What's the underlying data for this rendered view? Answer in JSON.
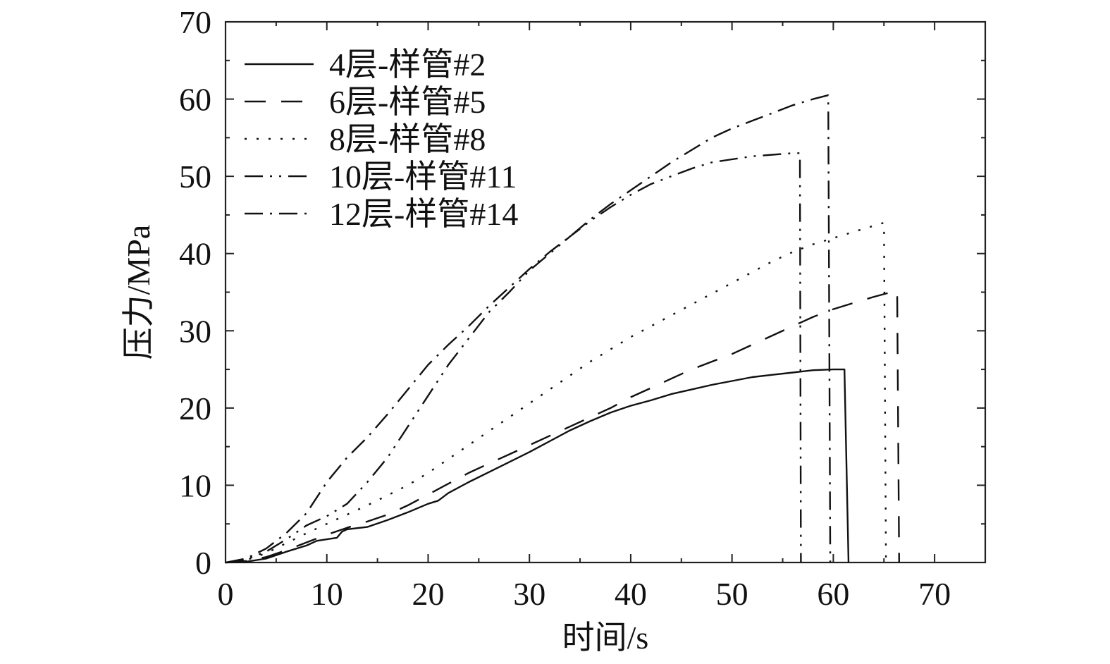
{
  "chart_data": {
    "type": "line",
    "title": "",
    "xlabel": "时间/s",
    "ylabel": "压力/MPa",
    "xlim": [
      0,
      75
    ],
    "ylim": [
      0,
      70
    ],
    "xticks": [
      0,
      10,
      20,
      30,
      40,
      50,
      60,
      70
    ],
    "yticks": [
      0,
      10,
      20,
      30,
      40,
      50,
      60,
      70
    ],
    "grid": false,
    "legend_position": "top-left",
    "series": [
      {
        "name": "4层-样管#2",
        "dash": "solid",
        "x": [
          0,
          2,
          4,
          6,
          8,
          9,
          10,
          11,
          11.5,
          12,
          14,
          16,
          18,
          20,
          21,
          22,
          24,
          26,
          28,
          30,
          32,
          34,
          36,
          38,
          40,
          42,
          44,
          46,
          48,
          50,
          52,
          54,
          56,
          58,
          60,
          61,
          61.1,
          61.5
        ],
        "y": [
          0,
          0.1,
          0.5,
          1.4,
          2.2,
          2.8,
          3.0,
          3.2,
          4.0,
          4.3,
          4.6,
          5.5,
          6.5,
          7.6,
          8.0,
          9.0,
          10.4,
          11.7,
          13.0,
          14.3,
          15.7,
          17.1,
          18.3,
          19.4,
          20.3,
          21.0,
          21.8,
          22.4,
          23.0,
          23.5,
          24.0,
          24.3,
          24.6,
          24.9,
          25.0,
          25.0,
          25.0,
          0
        ]
      },
      {
        "name": "6层-样管#5",
        "dash": "long-dash",
        "x": [
          0,
          2,
          4,
          6,
          8,
          10,
          12,
          14,
          16,
          18,
          20,
          22,
          24,
          26,
          28,
          30,
          32,
          34,
          36,
          38,
          40,
          42,
          44,
          46,
          48,
          50,
          52,
          54,
          56,
          58,
          60,
          62,
          64,
          66,
          66.3,
          66.5
        ],
        "y": [
          0,
          0.2,
          0.7,
          1.6,
          2.6,
          3.6,
          4.5,
          5.3,
          6.2,
          7.4,
          8.8,
          10.2,
          11.6,
          12.8,
          14.0,
          15.2,
          16.4,
          17.6,
          18.8,
          20.0,
          21.4,
          22.6,
          23.8,
          25.0,
          26.0,
          27.0,
          28.2,
          29.4,
          30.6,
          31.8,
          32.8,
          33.6,
          34.4,
          35.1,
          35.2,
          0
        ]
      },
      {
        "name": "8层-样管#8",
        "dash": "dotted",
        "x": [
          0,
          2,
          4,
          6,
          8,
          10,
          12,
          14,
          16,
          18,
          20,
          22,
          24,
          26,
          28,
          30,
          32,
          34,
          36,
          38,
          40,
          42,
          44,
          46,
          48,
          50,
          52,
          54,
          56,
          58,
          60,
          62,
          64,
          65,
          65.2
        ],
        "y": [
          0,
          0.3,
          1.2,
          2.5,
          3.8,
          5.0,
          6.2,
          7.4,
          8.7,
          10.0,
          11.6,
          13.4,
          15.2,
          17.0,
          18.8,
          20.6,
          22.4,
          24.2,
          26.0,
          27.6,
          29.2,
          30.6,
          32.0,
          33.4,
          34.8,
          36.2,
          37.6,
          39.0,
          40.2,
          41.2,
          42.0,
          42.8,
          43.6,
          44.0,
          0
        ]
      },
      {
        "name": "10层-样管#11",
        "dash": "dash-dot-dot",
        "x": [
          0,
          2,
          4,
          6,
          8,
          10,
          12,
          14,
          16,
          18,
          20,
          22,
          24,
          26,
          28,
          30,
          32,
          34,
          36,
          38,
          40,
          42,
          44,
          46,
          48,
          50,
          52,
          54,
          56,
          56.7,
          56.8
        ],
        "y": [
          0,
          0.4,
          1.4,
          3.0,
          4.8,
          6.0,
          7.6,
          10.4,
          13.6,
          17.6,
          21.6,
          25.6,
          29.0,
          32.4,
          35.0,
          37.8,
          40.0,
          42.2,
          44.2,
          46.0,
          47.6,
          49.0,
          50.0,
          51.0,
          51.8,
          52.2,
          52.6,
          52.8,
          53.0,
          53.0,
          0
        ]
      },
      {
        "name": "12层-样管#14",
        "dash": "dash-dot",
        "x": [
          0,
          2,
          4,
          6,
          8,
          10,
          12,
          14,
          16,
          18,
          20,
          22,
          24,
          26,
          28,
          30,
          32,
          34,
          36,
          38,
          40,
          42,
          44,
          46,
          48,
          50,
          52,
          54,
          56,
          58,
          59.5,
          59.7
        ],
        "y": [
          0,
          0.5,
          1.8,
          3.8,
          6.4,
          10.4,
          13.6,
          16.2,
          19.2,
          22.4,
          25.6,
          28.2,
          30.6,
          33.2,
          35.6,
          38.0,
          40.2,
          42.2,
          44.4,
          46.4,
          48.2,
          50.0,
          51.8,
          53.4,
          55.0,
          56.2,
          57.2,
          58.2,
          59.2,
          60.0,
          60.5,
          0
        ]
      }
    ]
  }
}
